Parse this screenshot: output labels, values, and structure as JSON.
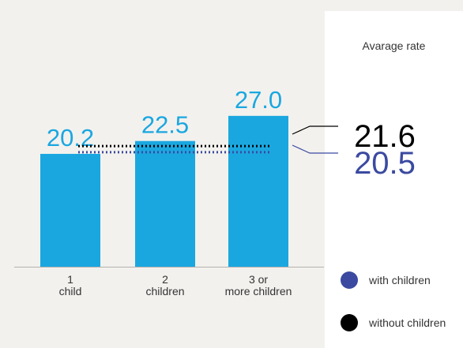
{
  "colors": {
    "background": "#f3f1ee",
    "bar": "#1aa7e0",
    "bar_label": "#1aa7e0",
    "with_children": "#3b4aa0",
    "without_children": "#000000",
    "axis": "#b5b2ad",
    "tick_text": "#333333"
  },
  "chart_data": {
    "type": "bar",
    "categories": [
      "1\nchild",
      "2\nchildren",
      "3 or\nmore children"
    ],
    "values": [
      20.2,
      22.5,
      27.0
    ],
    "value_labels": [
      "20.2",
      "22.5",
      "27.0"
    ],
    "ylim": [
      0,
      30
    ],
    "grid": false,
    "reference_lines": [
      {
        "name": "without children",
        "value": 21.6,
        "label": "21.6",
        "style": "dotted",
        "color": "#000000"
      },
      {
        "name": "with children",
        "value": 20.5,
        "label": "20.5",
        "style": "dotted",
        "color": "#3b4aa0"
      }
    ]
  },
  "panel": {
    "title": "Avarage rate",
    "legend": [
      {
        "label": "with children",
        "color": "#3b4aa0",
        "icon": "circle-dot"
      },
      {
        "label": "without children",
        "color": "#000000",
        "icon": "circle-dot"
      }
    ]
  }
}
